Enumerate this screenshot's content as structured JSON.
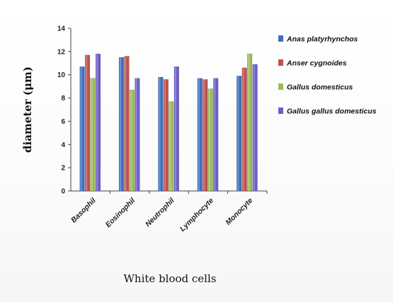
{
  "chart_data": {
    "type": "bar",
    "title": "",
    "xlabel": "White blood cells",
    "ylabel": "diameter (μm)",
    "ylim": [
      0,
      14
    ],
    "yticks": [
      0,
      2,
      4,
      6,
      8,
      10,
      12,
      14
    ],
    "categories": [
      "Basophil",
      "Eosinophil",
      "Neutrophil",
      "Lymphocyte",
      "Monocyte"
    ],
    "series": [
      {
        "name": "Anas platyrhynchos",
        "color": "#3f6fbf",
        "values": [
          10.7,
          11.5,
          9.8,
          9.7,
          9.9
        ]
      },
      {
        "name": "Anser cygnoides",
        "color": "#c0504d",
        "values": [
          11.7,
          11.6,
          9.6,
          9.6,
          10.6
        ]
      },
      {
        "name": "Gallus domesticus",
        "color": "#9bbb59",
        "values": [
          9.7,
          8.7,
          7.7,
          8.8,
          11.8
        ]
      },
      {
        "name": "Gallus gallus domesticus",
        "color": "#6a5fc8",
        "values": [
          11.8,
          9.7,
          10.7,
          9.7,
          10.9
        ]
      }
    ],
    "legend_position": "right",
    "grid": false
  }
}
